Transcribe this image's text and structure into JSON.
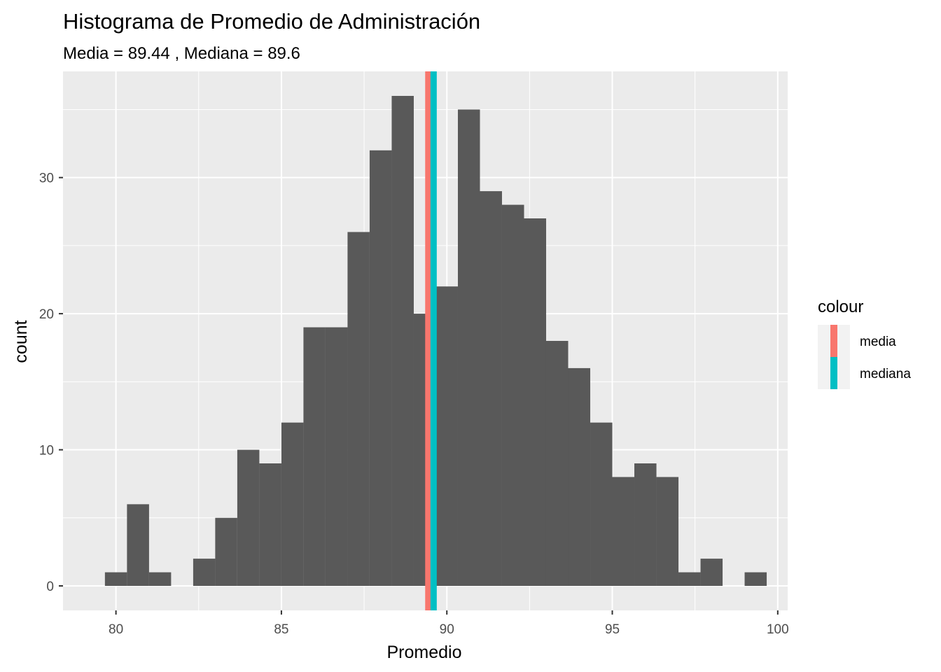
{
  "chart_data": {
    "type": "bar",
    "title": "Histograma de Promedio de Administración",
    "subtitle": "Media =  89.44 , Mediana =  89.6",
    "xlabel": "Promedio",
    "ylabel": "count",
    "xlim": [
      78.4,
      100.3
    ],
    "ylim": [
      -1.8,
      37.8
    ],
    "x_ticks": [
      80,
      85,
      90,
      95,
      100
    ],
    "y_ticks": [
      0,
      10,
      20,
      30
    ],
    "bin_width": 0.667,
    "bins": [
      {
        "x": 80.0,
        "count": 1
      },
      {
        "x": 80.667,
        "count": 6
      },
      {
        "x": 81.333,
        "count": 1
      },
      {
        "x": 82.0,
        "count": 0
      },
      {
        "x": 82.667,
        "count": 2
      },
      {
        "x": 83.333,
        "count": 5
      },
      {
        "x": 84.0,
        "count": 10
      },
      {
        "x": 84.667,
        "count": 9
      },
      {
        "x": 85.333,
        "count": 12
      },
      {
        "x": 86.0,
        "count": 19
      },
      {
        "x": 86.667,
        "count": 19
      },
      {
        "x": 87.333,
        "count": 26
      },
      {
        "x": 88.0,
        "count": 32
      },
      {
        "x": 88.667,
        "count": 36
      },
      {
        "x": 89.333,
        "count": 20
      },
      {
        "x": 90.0,
        "count": 22
      },
      {
        "x": 90.667,
        "count": 35
      },
      {
        "x": 91.333,
        "count": 29
      },
      {
        "x": 92.0,
        "count": 28
      },
      {
        "x": 92.667,
        "count": 27
      },
      {
        "x": 93.333,
        "count": 18
      },
      {
        "x": 94.0,
        "count": 16
      },
      {
        "x": 94.667,
        "count": 12
      },
      {
        "x": 95.333,
        "count": 8
      },
      {
        "x": 96.0,
        "count": 9
      },
      {
        "x": 96.667,
        "count": 8
      },
      {
        "x": 97.333,
        "count": 1
      },
      {
        "x": 98.0,
        "count": 2
      },
      {
        "x": 98.667,
        "count": 0
      },
      {
        "x": 99.333,
        "count": 1
      }
    ],
    "vlines": [
      {
        "name": "media",
        "x": 89.44,
        "color": "#F8766D"
      },
      {
        "name": "mediana",
        "x": 89.6,
        "color": "#00BFC4"
      }
    ],
    "legend": {
      "title": "colour",
      "position": "right",
      "items": [
        {
          "label": "media",
          "color": "#F8766D"
        },
        {
          "label": "mediana",
          "color": "#00BFC4"
        }
      ]
    },
    "bar_color": "#595959",
    "panel_background": "#EBEBEB",
    "grid": true
  }
}
